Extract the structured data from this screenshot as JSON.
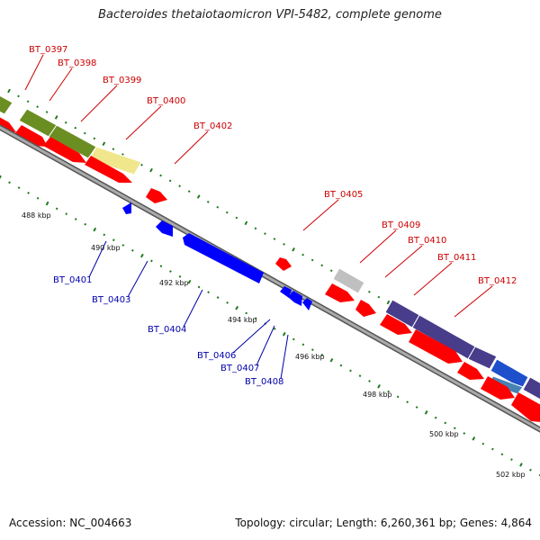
{
  "title": "Bacteroides thetaiotaomicron VPI-5482, complete genome",
  "accession": "Accession: NC_004663",
  "summary": "Topology: circular; Length: 6,260,361 bp; Genes: 4,864",
  "colors": {
    "forward_strand": "#ff0000",
    "reverse_strand": "#0000ff",
    "forward_label": "#cc0000",
    "reverse_label": "#0000aa",
    "tick": "#1e7a1e",
    "backbone": "#888888",
    "track_olive": "#6b8e23",
    "track_cream": "#f0e68c",
    "track_grey": "#c0c0c0",
    "track_purple": "#483d8b",
    "track_blue": "#1e50cc",
    "track_steel": "#4682b4"
  },
  "ruler_labels": [
    "488 kbp",
    "490 kbp",
    "492 kbp",
    "494 kbp",
    "496 kbp",
    "498 kbp",
    "500 kbp",
    "502 kbp"
  ],
  "forward_genes": [
    "BT_0397",
    "BT_0398",
    "BT_0399",
    "BT_0400",
    "BT_0402",
    "BT_0405",
    "BT_0409",
    "BT_0410",
    "BT_0411",
    "BT_0412"
  ],
  "reverse_genes": [
    "BT_0401",
    "BT_0403",
    "BT_0404",
    "BT_0406",
    "BT_0407",
    "BT_0408"
  ]
}
